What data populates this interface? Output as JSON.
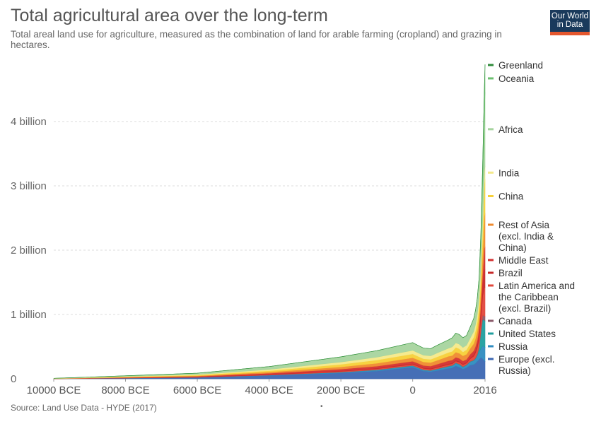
{
  "header": {
    "title": "Total agricultural area over the long-term",
    "subtitle": "Total areal land use for agriculture, measured as the combination of land for arable farming (cropland) and grazing in hectares."
  },
  "logo": {
    "line1": "Our World",
    "line2": "in Data"
  },
  "footer": {
    "source": "Source: Land Use Data - HYDE (2017)",
    "dot": "•"
  },
  "chart_data": {
    "type": "area",
    "stacked": true,
    "x_label": "",
    "y_label": "",
    "x_ticks": [
      {
        "value": -10000,
        "label": "10000 BCE"
      },
      {
        "value": -8000,
        "label": "8000 BCE"
      },
      {
        "value": -6000,
        "label": "6000 BCE"
      },
      {
        "value": -4000,
        "label": "4000 BCE"
      },
      {
        "value": -2000,
        "label": "2000 BCE"
      },
      {
        "value": 0,
        "label": "0"
      },
      {
        "value": 2016,
        "label": "2016"
      }
    ],
    "y_ticks": [
      {
        "value": 0,
        "label": "0"
      },
      {
        "value": 1000000000,
        "label": "1 billion"
      },
      {
        "value": 2000000000,
        "label": "2 billion"
      },
      {
        "value": 3000000000,
        "label": "3 billion"
      },
      {
        "value": 4000000000,
        "label": "4 billion"
      }
    ],
    "x_range": [
      -10000,
      2016
    ],
    "y_range": [
      0,
      4900000000
    ],
    "grid": true,
    "legend_placement": "right",
    "x": [
      -10000,
      -6000,
      -4000,
      -2000,
      -1000,
      0,
      100,
      300,
      500,
      700,
      1000,
      1100,
      1200,
      1300,
      1400,
      1500,
      1600,
      1700,
      1750,
      1800,
      1850,
      1900,
      1950,
      2000,
      2016
    ],
    "series": [
      {
        "name": "Europe (excl. Russia)",
        "color": "#3c67b2",
        "values": [
          0.001,
          0.02,
          0.05,
          0.09,
          0.12,
          0.18,
          0.16,
          0.12,
          0.11,
          0.13,
          0.16,
          0.17,
          0.2,
          0.18,
          0.15,
          0.17,
          0.21,
          0.22,
          0.24,
          0.27,
          0.3,
          0.33,
          0.31,
          0.28,
          0.27
        ]
      },
      {
        "name": "Russia",
        "color": "#2e8bc0",
        "values": [
          0,
          0.002,
          0.005,
          0.01,
          0.015,
          0.02,
          0.02,
          0.015,
          0.015,
          0.02,
          0.03,
          0.03,
          0.04,
          0.04,
          0.03,
          0.04,
          0.05,
          0.06,
          0.07,
          0.09,
          0.11,
          0.14,
          0.2,
          0.22,
          0.22
        ]
      },
      {
        "name": "United States",
        "color": "#1f9e9e",
        "values": [
          0,
          0.001,
          0.002,
          0.003,
          0.004,
          0.005,
          0.005,
          0.005,
          0.005,
          0.006,
          0.007,
          0.007,
          0.008,
          0.008,
          0.008,
          0.008,
          0.009,
          0.01,
          0.012,
          0.02,
          0.07,
          0.25,
          0.41,
          0.41,
          0.41
        ]
      },
      {
        "name": "Canada",
        "color": "#8a5a6a",
        "values": [
          0,
          0,
          0,
          0.001,
          0.001,
          0.001,
          0.001,
          0.001,
          0.001,
          0.001,
          0.001,
          0.001,
          0.001,
          0.001,
          0.001,
          0.001,
          0.001,
          0.001,
          0.002,
          0.003,
          0.01,
          0.04,
          0.07,
          0.065,
          0.065
        ]
      },
      {
        "name": "Latin America and the Caribbean (excl. Brazil)",
        "color": "#e2473b",
        "values": [
          0,
          0.003,
          0.006,
          0.012,
          0.016,
          0.02,
          0.02,
          0.02,
          0.02,
          0.022,
          0.025,
          0.026,
          0.028,
          0.03,
          0.03,
          0.025,
          0.04,
          0.06,
          0.08,
          0.1,
          0.13,
          0.18,
          0.3,
          0.45,
          0.46
        ]
      },
      {
        "name": "Brazil",
        "color": "#c62828",
        "values": [
          0,
          0.001,
          0.002,
          0.004,
          0.005,
          0.006,
          0.006,
          0.006,
          0.006,
          0.006,
          0.007,
          0.007,
          0.007,
          0.008,
          0.008,
          0.008,
          0.01,
          0.015,
          0.02,
          0.03,
          0.05,
          0.08,
          0.15,
          0.26,
          0.28
        ]
      },
      {
        "name": "Middle East",
        "color": "#d32f2f",
        "values": [
          0.001,
          0.01,
          0.02,
          0.03,
          0.035,
          0.04,
          0.04,
          0.04,
          0.04,
          0.045,
          0.05,
          0.05,
          0.05,
          0.05,
          0.05,
          0.05,
          0.06,
          0.07,
          0.08,
          0.09,
          0.11,
          0.14,
          0.2,
          0.34,
          0.35
        ]
      },
      {
        "name": "Rest of Asia (excl. India & China)",
        "color": "#ef8a2e",
        "values": [
          0.001,
          0.01,
          0.02,
          0.035,
          0.045,
          0.055,
          0.055,
          0.055,
          0.055,
          0.06,
          0.07,
          0.07,
          0.08,
          0.08,
          0.08,
          0.08,
          0.09,
          0.11,
          0.12,
          0.14,
          0.17,
          0.22,
          0.33,
          0.5,
          0.52
        ]
      },
      {
        "name": "China",
        "color": "#f7d038",
        "values": [
          0.001,
          0.01,
          0.02,
          0.04,
          0.05,
          0.06,
          0.055,
          0.05,
          0.05,
          0.055,
          0.06,
          0.065,
          0.075,
          0.07,
          0.06,
          0.07,
          0.08,
          0.1,
          0.12,
          0.14,
          0.16,
          0.2,
          0.3,
          0.5,
          0.53
        ]
      },
      {
        "name": "India",
        "color": "#f4e98a",
        "values": [
          0.001,
          0.01,
          0.02,
          0.035,
          0.045,
          0.055,
          0.055,
          0.055,
          0.055,
          0.06,
          0.065,
          0.07,
          0.07,
          0.07,
          0.07,
          0.07,
          0.08,
          0.09,
          0.1,
          0.12,
          0.14,
          0.16,
          0.18,
          0.2,
          0.2
        ]
      },
      {
        "name": "Africa",
        "color": "#a6d49e",
        "values": [
          0.002,
          0.02,
          0.045,
          0.08,
          0.1,
          0.12,
          0.115,
          0.11,
          0.11,
          0.12,
          0.13,
          0.14,
          0.15,
          0.15,
          0.15,
          0.15,
          0.17,
          0.2,
          0.22,
          0.25,
          0.3,
          0.38,
          0.55,
          0.9,
          1.15
        ]
      },
      {
        "name": "Oceania",
        "color": "#6cc070",
        "values": [
          0,
          0,
          0,
          0.001,
          0.001,
          0.001,
          0.001,
          0.001,
          0.001,
          0.001,
          0.001,
          0.001,
          0.001,
          0.001,
          0.001,
          0.001,
          0.001,
          0.001,
          0.001,
          0.002,
          0.02,
          0.15,
          0.35,
          0.45,
          0.43
        ]
      },
      {
        "name": "Greenland",
        "color": "#2e8b3a",
        "values": [
          0,
          0,
          0,
          0,
          0,
          0,
          0,
          0,
          0,
          0,
          0,
          0,
          0,
          0,
          0,
          0,
          0,
          0,
          0,
          0,
          0,
          0,
          0.002,
          0.003,
          0.003
        ]
      }
    ],
    "value_unit_multiplier": 1000000000
  }
}
